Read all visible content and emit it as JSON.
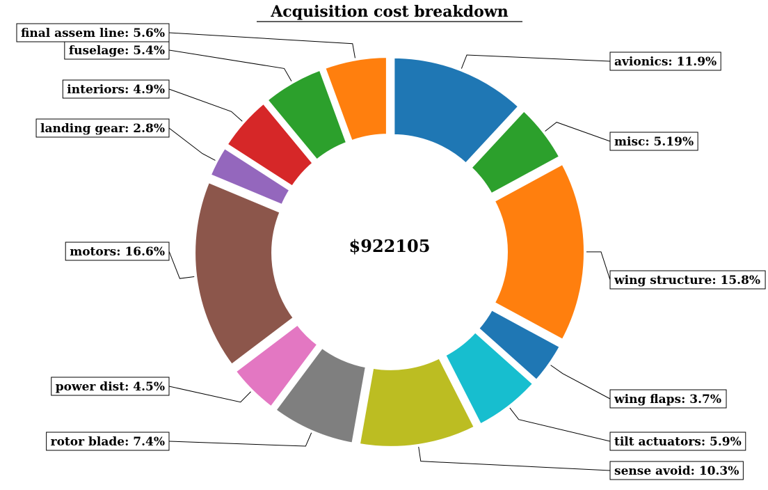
{
  "chart_data": {
    "type": "pie",
    "subtype": "donut",
    "title": "Acquisition cost breakdown",
    "center_label": "$922105",
    "start_angle_deg": 90,
    "direction": "clockwise",
    "slices": [
      {
        "name": "avionics",
        "value": 11.9,
        "label": "avionics: 11.9%",
        "color": "#1f77b4"
      },
      {
        "name": "misc",
        "value": 5.19,
        "label": "misc: 5.19%",
        "color": "#2ca02c"
      },
      {
        "name": "wing structure",
        "value": 15.8,
        "label": "wing structure: 15.8%",
        "color": "#ff7f0e"
      },
      {
        "name": "wing flaps",
        "value": 3.7,
        "label": "wing flaps: 3.7%",
        "color": "#1f77b4"
      },
      {
        "name": "tilt actuators",
        "value": 5.9,
        "label": "tilt actuators: 5.9%",
        "color": "#17becf"
      },
      {
        "name": "sense avoid",
        "value": 10.3,
        "label": "sense avoid: 10.3%",
        "color": "#bcbd22"
      },
      {
        "name": "rotor blade",
        "value": 7.4,
        "label": "rotor blade: 7.4%",
        "color": "#7f7f7f"
      },
      {
        "name": "power dist",
        "value": 4.5,
        "label": "power dist: 4.5%",
        "color": "#e377c2"
      },
      {
        "name": "motors",
        "value": 16.6,
        "label": "motors: 16.6%",
        "color": "#8c564b"
      },
      {
        "name": "landing gear",
        "value": 2.8,
        "label": "landing gear: 2.8%",
        "color": "#9467bd"
      },
      {
        "name": "interiors",
        "value": 4.9,
        "label": "interiors: 4.9%",
        "color": "#d62728"
      },
      {
        "name": "fuselage",
        "value": 5.4,
        "label": "fuselage: 5.4%",
        "color": "#2ca02c"
      },
      {
        "name": "final assem line",
        "value": 5.6,
        "label": "final assem line: 5.6%",
        "color": "#ff7f0e"
      }
    ]
  }
}
